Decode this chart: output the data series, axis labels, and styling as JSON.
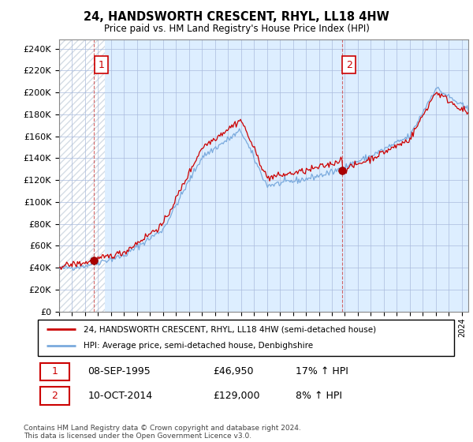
{
  "title": "24, HANDSWORTH CRESCENT, RHYL, LL18 4HW",
  "subtitle": "Price paid vs. HM Land Registry's House Price Index (HPI)",
  "ylabel_ticks": [
    0,
    20000,
    40000,
    60000,
    80000,
    100000,
    120000,
    140000,
    160000,
    180000,
    200000,
    220000,
    240000
  ],
  "ylim": [
    0,
    248000
  ],
  "xlim_start": 1993.0,
  "xlim_end": 2024.5,
  "sale1_date": 1995.69,
  "sale1_price": 46950,
  "sale1_label": "1",
  "sale2_date": 2014.78,
  "sale2_price": 129000,
  "sale2_label": "2",
  "legend_line1": "24, HANDSWORTH CRESCENT, RHYL, LL18 4HW (semi-detached house)",
  "legend_line2": "HPI: Average price, semi-detached house, Denbighshire",
  "table_row1": [
    "1",
    "08-SEP-1995",
    "£46,950",
    "17% ↑ HPI"
  ],
  "table_row2": [
    "2",
    "10-OCT-2014",
    "£129,000",
    "8% ↑ HPI"
  ],
  "footnote": "Contains HM Land Registry data © Crown copyright and database right 2024.\nThis data is licensed under the Open Government Licence v3.0.",
  "line_color_red": "#cc0000",
  "line_color_blue": "#7aaadd",
  "marker_color_red": "#aa0000",
  "background_color": "#ddeeff",
  "grid_color": "#aabbcc"
}
